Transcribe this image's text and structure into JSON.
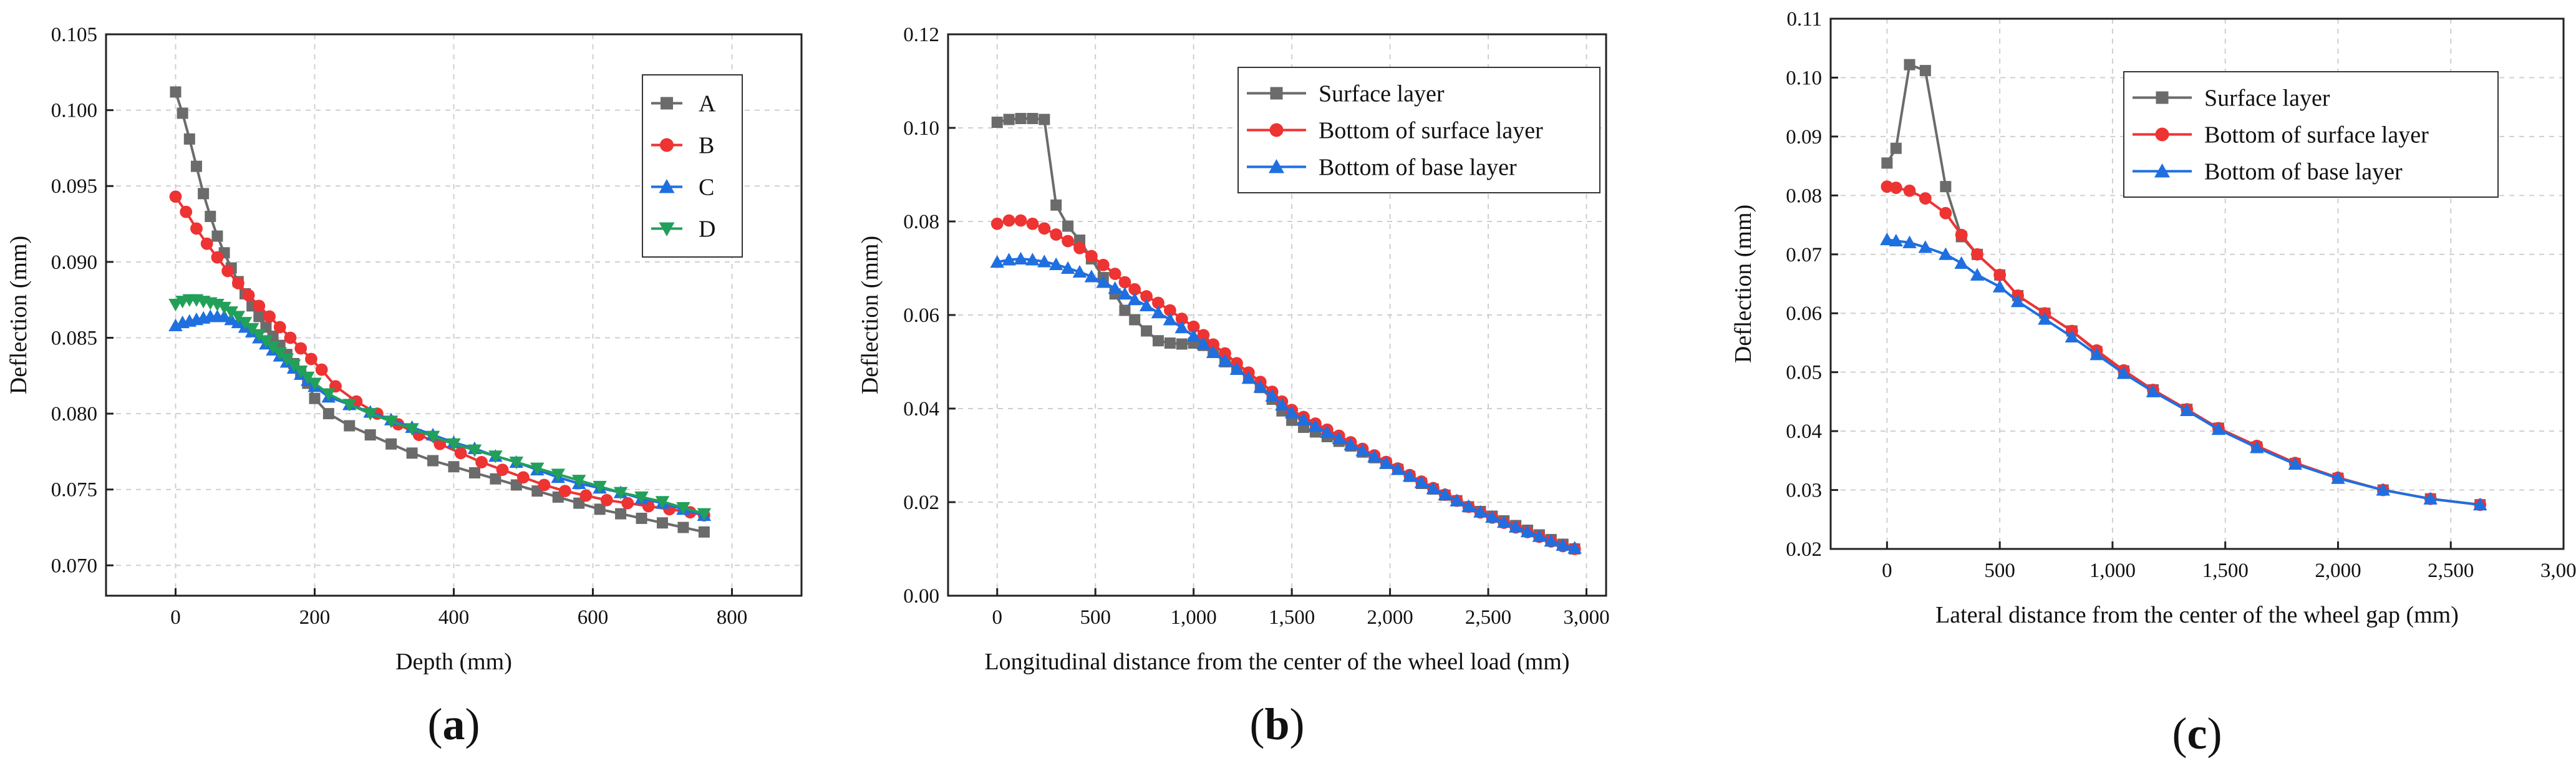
{
  "chart_data": [
    {
      "id": "a",
      "type": "line",
      "panel_label": "(a)",
      "title": "",
      "xlabel": "Depth (mm)",
      "ylabel": "Deflection (mm)",
      "xlim": [
        -100,
        900
      ],
      "ylim": [
        0.068,
        0.105
      ],
      "xticks": [
        0,
        200,
        400,
        600,
        800
      ],
      "xtick_labels": [
        "0",
        "200",
        "400",
        "600",
        "800"
      ],
      "yticks": [
        0.07,
        0.075,
        0.08,
        0.085,
        0.09,
        0.095,
        0.1,
        0.105
      ],
      "ytick_labels": [
        "0.070",
        "0.075",
        "0.080",
        "0.085",
        "0.090",
        "0.095",
        "0.100",
        "0.105"
      ],
      "grid": true,
      "legend_position": "top-right",
      "series": [
        {
          "name": "A",
          "color": "#6b6b6b",
          "marker": "square",
          "x": [
            0,
            10,
            20,
            30,
            40,
            50,
            60,
            70,
            80,
            90,
            100,
            110,
            120,
            130,
            140,
            150,
            160,
            170,
            180,
            190,
            200,
            220,
            250,
            280,
            310,
            340,
            370,
            400,
            430,
            460,
            490,
            520,
            550,
            580,
            610,
            640,
            670,
            700,
            730,
            760
          ],
          "y": [
            0.1012,
            0.0998,
            0.0981,
            0.0963,
            0.0945,
            0.093,
            0.0917,
            0.0906,
            0.0896,
            0.0887,
            0.0879,
            0.0871,
            0.0864,
            0.0857,
            0.0851,
            0.0845,
            0.0839,
            0.0833,
            0.0826,
            0.082,
            0.081,
            0.08,
            0.0792,
            0.0786,
            0.078,
            0.0774,
            0.0769,
            0.0765,
            0.0761,
            0.0757,
            0.0753,
            0.0749,
            0.0745,
            0.0741,
            0.0737,
            0.0734,
            0.0731,
            0.0728,
            0.0725,
            0.0722
          ]
        },
        {
          "name": "B",
          "color": "#ee3333",
          "marker": "circle",
          "x": [
            0,
            15,
            30,
            45,
            60,
            75,
            90,
            105,
            120,
            135,
            150,
            165,
            180,
            195,
            210,
            230,
            260,
            290,
            320,
            350,
            380,
            410,
            440,
            470,
            500,
            530,
            560,
            590,
            620,
            650,
            680,
            710,
            740,
            760
          ],
          "y": [
            0.0943,
            0.0933,
            0.0922,
            0.0912,
            0.0903,
            0.0894,
            0.0886,
            0.0878,
            0.0871,
            0.0864,
            0.0857,
            0.085,
            0.0843,
            0.0836,
            0.0829,
            0.0818,
            0.0808,
            0.08,
            0.0793,
            0.0786,
            0.078,
            0.0774,
            0.0768,
            0.0763,
            0.0758,
            0.0753,
            0.0749,
            0.0746,
            0.0743,
            0.0741,
            0.0739,
            0.0737,
            0.0735,
            0.0733
          ]
        },
        {
          "name": "C",
          "color": "#1f6fe0",
          "marker": "triangle-up",
          "x": [
            0,
            10,
            20,
            30,
            40,
            50,
            60,
            70,
            80,
            90,
            100,
            110,
            120,
            130,
            140,
            150,
            160,
            170,
            180,
            190,
            200,
            220,
            250,
            280,
            310,
            340,
            370,
            400,
            430,
            460,
            490,
            520,
            550,
            580,
            610,
            640,
            670,
            700,
            730,
            760
          ],
          "y": [
            0.0858,
            0.086,
            0.0861,
            0.0862,
            0.0863,
            0.0864,
            0.0864,
            0.0864,
            0.0862,
            0.086,
            0.0857,
            0.0854,
            0.085,
            0.0846,
            0.0842,
            0.0838,
            0.0834,
            0.083,
            0.0826,
            0.0822,
            0.0818,
            0.0811,
            0.0806,
            0.0801,
            0.0796,
            0.0791,
            0.0786,
            0.0781,
            0.0777,
            0.0772,
            0.0768,
            0.0763,
            0.0758,
            0.0754,
            0.0751,
            0.0748,
            0.0744,
            0.0741,
            0.0737,
            0.0733
          ]
        },
        {
          "name": "D",
          "color": "#22a05a",
          "marker": "triangle-down",
          "x": [
            0,
            10,
            20,
            30,
            40,
            50,
            60,
            70,
            80,
            90,
            100,
            110,
            120,
            130,
            140,
            150,
            160,
            170,
            180,
            190,
            200,
            220,
            250,
            280,
            310,
            340,
            370,
            400,
            430,
            460,
            490,
            520,
            550,
            580,
            610,
            640,
            670,
            700,
            730,
            760
          ],
          "y": [
            0.0872,
            0.0874,
            0.0875,
            0.0875,
            0.0874,
            0.0873,
            0.0872,
            0.087,
            0.0867,
            0.0864,
            0.086,
            0.0856,
            0.0852,
            0.0848,
            0.0844,
            0.084,
            0.0836,
            0.0832,
            0.0828,
            0.0824,
            0.082,
            0.0813,
            0.0806,
            0.08,
            0.0795,
            0.079,
            0.0785,
            0.078,
            0.0776,
            0.0772,
            0.0768,
            0.0764,
            0.076,
            0.0756,
            0.0752,
            0.0748,
            0.0745,
            0.0742,
            0.0738,
            0.0734
          ]
        }
      ]
    },
    {
      "id": "b",
      "type": "line",
      "panel_label": "(b)",
      "title": "",
      "xlabel": "Longitudinal distance from the center of the wheel load (mm)",
      "ylabel": "Deflection (mm)",
      "xlim": [
        -250,
        3100
      ],
      "ylim": [
        0.0,
        0.12
      ],
      "xticks": [
        0,
        500,
        1000,
        1500,
        2000,
        2500,
        3000
      ],
      "xtick_labels": [
        "0",
        "500",
        "1,000",
        "1,500",
        "2,000",
        "2,500",
        "3,000"
      ],
      "yticks": [
        0.0,
        0.02,
        0.04,
        0.06,
        0.08,
        0.1,
        0.12
      ],
      "ytick_labels": [
        "0.00",
        "0.02",
        "0.04",
        "0.06",
        "0.08",
        "0.10",
        "0.12"
      ],
      "grid": true,
      "legend_position": "top-right",
      "series": [
        {
          "name": "Surface layer",
          "color": "#6b6b6b",
          "marker": "square",
          "x": [
            0,
            60,
            120,
            180,
            240,
            300,
            360,
            420,
            480,
            540,
            600,
            650,
            700,
            760,
            820,
            880,
            940,
            1000,
            1050,
            1100,
            1160,
            1220,
            1280,
            1340,
            1400,
            1450,
            1500,
            1560,
            1620,
            1680,
            1740,
            1800,
            1860,
            1920,
            1980,
            2040,
            2100,
            2160,
            2220,
            2280,
            2340,
            2400,
            2460,
            2520,
            2580,
            2640,
            2700,
            2760,
            2820,
            2880,
            2940
          ],
          "y": [
            0.1012,
            0.1018,
            0.102,
            0.102,
            0.1018,
            0.0835,
            0.079,
            0.076,
            0.072,
            0.068,
            0.0645,
            0.061,
            0.059,
            0.0566,
            0.0545,
            0.054,
            0.0538,
            0.054,
            0.0535,
            0.052,
            0.05,
            0.0484,
            0.0465,
            0.0445,
            0.042,
            0.0395,
            0.0375,
            0.036,
            0.035,
            0.034,
            0.033,
            0.032,
            0.0307,
            0.0295,
            0.0283,
            0.027,
            0.0255,
            0.024,
            0.0228,
            0.0215,
            0.0203,
            0.019,
            0.018,
            0.017,
            0.016,
            0.015,
            0.014,
            0.013,
            0.012,
            0.011,
            0.01
          ]
        },
        {
          "name": "Bottom of surface layer",
          "color": "#ee3333",
          "marker": "circle",
          "x": [
            0,
            60,
            120,
            180,
            240,
            300,
            360,
            420,
            480,
            540,
            600,
            650,
            700,
            760,
            820,
            880,
            940,
            1000,
            1050,
            1100,
            1160,
            1220,
            1280,
            1340,
            1400,
            1450,
            1500,
            1560,
            1620,
            1680,
            1740,
            1800,
            1860,
            1920,
            1980,
            2040,
            2100,
            2160,
            2220,
            2280,
            2340,
            2400,
            2460,
            2520,
            2580,
            2640,
            2700,
            2760,
            2820,
            2880,
            2940
          ],
          "y": [
            0.0795,
            0.0802,
            0.0802,
            0.0795,
            0.0785,
            0.0772,
            0.0758,
            0.0743,
            0.0726,
            0.0707,
            0.0688,
            0.067,
            0.0655,
            0.064,
            0.0626,
            0.061,
            0.0592,
            0.0575,
            0.0557,
            0.0537,
            0.0518,
            0.0497,
            0.0477,
            0.0457,
            0.0436,
            0.0415,
            0.0397,
            0.0382,
            0.0368,
            0.0355,
            0.0342,
            0.0328,
            0.0314,
            0.03,
            0.0286,
            0.0272,
            0.0258,
            0.0244,
            0.023,
            0.0216,
            0.0203,
            0.019,
            0.0178,
            0.0167,
            0.0156,
            0.0146,
            0.0136,
            0.0126,
            0.0116,
            0.0106,
            0.01
          ]
        },
        {
          "name": "Bottom of base layer",
          "color": "#1f6fe0",
          "marker": "triangle-up",
          "x": [
            0,
            60,
            120,
            180,
            240,
            300,
            360,
            420,
            480,
            540,
            600,
            650,
            700,
            760,
            820,
            880,
            940,
            1000,
            1050,
            1100,
            1160,
            1220,
            1280,
            1340,
            1400,
            1450,
            1500,
            1560,
            1620,
            1680,
            1740,
            1800,
            1860,
            1920,
            1980,
            2040,
            2100,
            2160,
            2220,
            2280,
            2340,
            2400,
            2460,
            2520,
            2580,
            2640,
            2700,
            2760,
            2820,
            2880,
            2940
          ],
          "y": [
            0.0713,
            0.0718,
            0.072,
            0.0718,
            0.0714,
            0.0708,
            0.07,
            0.0692,
            0.0682,
            0.067,
            0.0657,
            0.0645,
            0.0633,
            0.062,
            0.0605,
            0.059,
            0.0573,
            0.0555,
            0.0538,
            0.052,
            0.0502,
            0.0484,
            0.0465,
            0.0446,
            0.0427,
            0.0408,
            0.0391,
            0.0376,
            0.0362,
            0.0349,
            0.0336,
            0.0323,
            0.031,
            0.0297,
            0.0283,
            0.027,
            0.0256,
            0.0242,
            0.0229,
            0.0216,
            0.0203,
            0.0191,
            0.0179,
            0.0168,
            0.0157,
            0.0147,
            0.0137,
            0.0127,
            0.0117,
            0.0108,
            0.0102
          ]
        }
      ]
    },
    {
      "id": "c",
      "type": "line",
      "panel_label": "(c)",
      "title": "",
      "xlabel": "Lateral distance from the center of the wheel gap (mm)",
      "ylabel": "Deflection (mm)",
      "xlim": [
        -250,
        3000
      ],
      "ylim": [
        0.02,
        0.11
      ],
      "xticks": [
        0,
        500,
        1000,
        1500,
        2000,
        2500,
        3000
      ],
      "xtick_labels": [
        "0",
        "500",
        "1,000",
        "1,500",
        "2,000",
        "2,500",
        "3,000"
      ],
      "yticks": [
        0.02,
        0.03,
        0.04,
        0.05,
        0.06,
        0.07,
        0.08,
        0.09,
        0.1,
        0.11
      ],
      "ytick_labels": [
        "0.02",
        "0.03",
        "0.04",
        "0.05",
        "0.06",
        "0.07",
        "0.08",
        "0.09",
        "0.10",
        "0.11"
      ],
      "grid": true,
      "legend_position": "top-right",
      "series": [
        {
          "name": "Surface layer",
          "color": "#6b6b6b",
          "marker": "square",
          "x": [
            0,
            40,
            100,
            170,
            260,
            330,
            400,
            500,
            580,
            700,
            820,
            930,
            1050,
            1180,
            1330,
            1470,
            1640,
            1810,
            2000,
            2200,
            2410,
            2630
          ],
          "y": [
            0.0855,
            0.088,
            0.1022,
            0.1012,
            0.0815,
            0.073,
            0.07,
            0.0665,
            0.063,
            0.06,
            0.057,
            0.0535,
            0.0502,
            0.047,
            0.0437,
            0.0405,
            0.0373,
            0.0345,
            0.032,
            0.03,
            0.0285,
            0.0275
          ]
        },
        {
          "name": "Bottom of surface layer",
          "color": "#ee3333",
          "marker": "circle",
          "x": [
            0,
            40,
            100,
            170,
            260,
            330,
            400,
            500,
            580,
            700,
            820,
            930,
            1050,
            1180,
            1330,
            1470,
            1640,
            1810,
            2000,
            2200,
            2410,
            2630
          ],
          "y": [
            0.0815,
            0.0813,
            0.0808,
            0.0795,
            0.077,
            0.0733,
            0.07,
            0.0665,
            0.063,
            0.06,
            0.057,
            0.0537,
            0.0503,
            0.047,
            0.0437,
            0.0405,
            0.0375,
            0.0346,
            0.0321,
            0.03,
            0.0285,
            0.0275
          ]
        },
        {
          "name": "Bottom of base layer",
          "color": "#1f6fe0",
          "marker": "triangle-up",
          "x": [
            0,
            40,
            100,
            170,
            260,
            330,
            400,
            500,
            580,
            700,
            820,
            930,
            1050,
            1180,
            1330,
            1470,
            1640,
            1810,
            2000,
            2200,
            2410,
            2630
          ],
          "y": [
            0.0725,
            0.0723,
            0.072,
            0.0712,
            0.07,
            0.0685,
            0.0665,
            0.0645,
            0.062,
            0.059,
            0.056,
            0.053,
            0.0498,
            0.0467,
            0.0435,
            0.0403,
            0.0372,
            0.0344,
            0.032,
            0.03,
            0.0285,
            0.0275
          ]
        }
      ]
    }
  ]
}
